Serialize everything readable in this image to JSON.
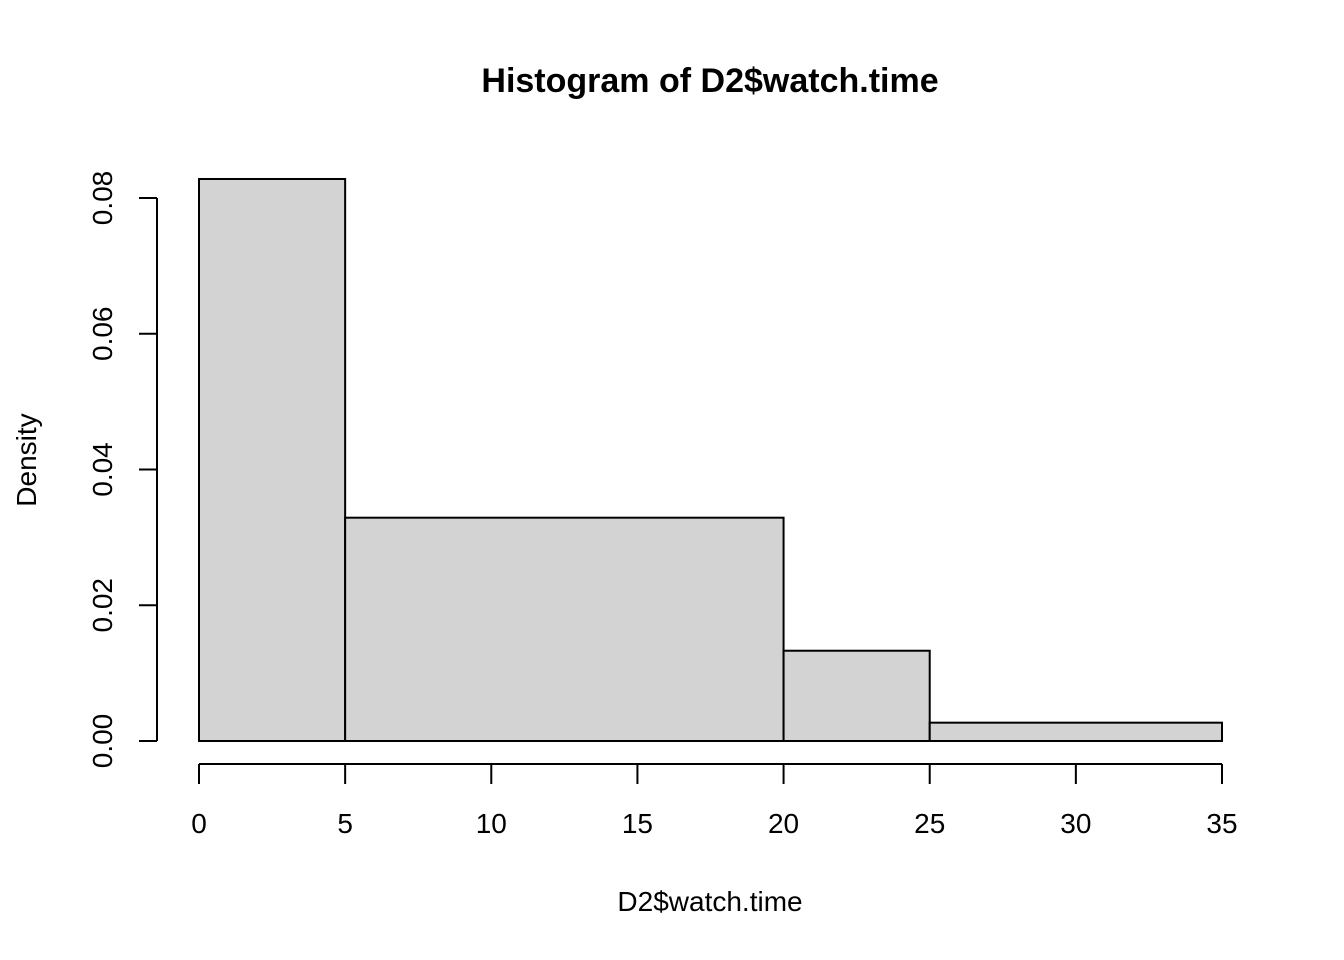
{
  "chart_data": {
    "type": "bar",
    "title": "Histogram of D2$watch.time",
    "xlabel": "D2$watch.time",
    "ylabel": "Density",
    "bins": [
      {
        "start": 0,
        "end": 5,
        "density": 0.0828
      },
      {
        "start": 5,
        "end": 20,
        "density": 0.0329
      },
      {
        "start": 20,
        "end": 25,
        "density": 0.0133
      },
      {
        "start": 25,
        "end": 35,
        "density": 0.0027
      }
    ],
    "x_ticks": [
      0,
      5,
      10,
      15,
      20,
      25,
      30,
      35
    ],
    "x_tick_labels": [
      "0",
      "5",
      "10",
      "15",
      "20",
      "25",
      "30",
      "35"
    ],
    "y_ticks": [
      0,
      0.02,
      0.04,
      0.06,
      0.08
    ],
    "y_tick_labels": [
      "0.00",
      "0.02",
      "0.04",
      "0.06",
      "0.08"
    ],
    "xlim": [
      0,
      35
    ],
    "ylim": [
      0,
      0.0828
    ],
    "bar_fill": "#d3d3d3",
    "bar_stroke": "#000000",
    "grid": false,
    "legend": "none"
  }
}
